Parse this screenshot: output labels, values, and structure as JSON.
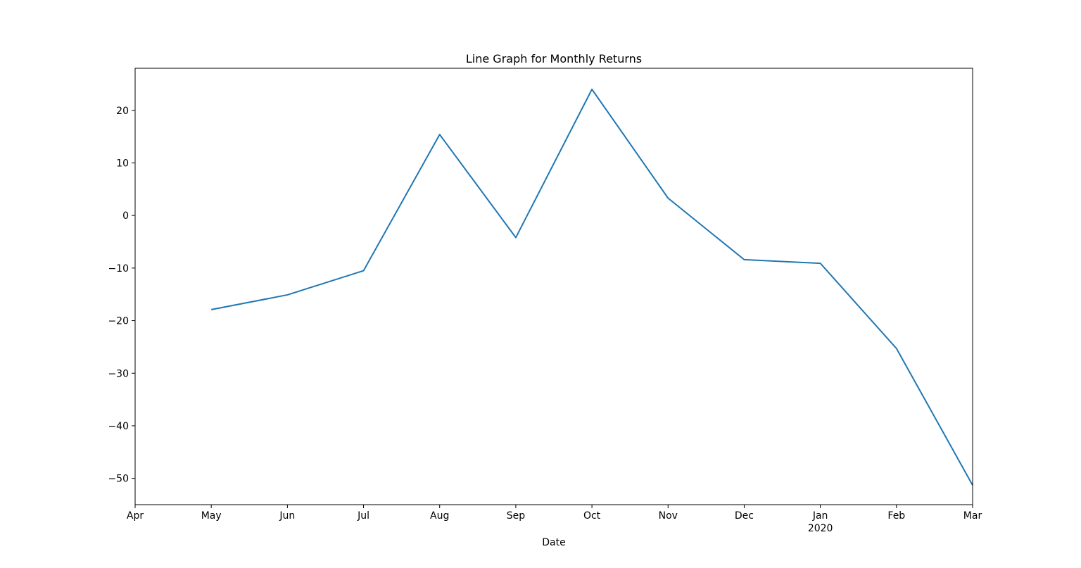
{
  "chart_data": {
    "type": "line",
    "title": "Line Graph for Monthly Returns",
    "xlabel": "Date",
    "ylabel": "",
    "x": [
      "2019-05",
      "2019-06",
      "2019-07",
      "2019-08",
      "2019-09",
      "2019-10",
      "2019-11",
      "2019-12",
      "2020-01",
      "2020-02",
      "2020-03"
    ],
    "series": [
      {
        "name": "",
        "color": "#1f77b4",
        "values": [
          -17.9,
          -15.1,
          -10.5,
          15.4,
          -4.2,
          24.0,
          3.3,
          -8.4,
          -9.1,
          -25.3,
          -51.3
        ]
      }
    ],
    "x_tick_labels": [
      "Apr",
      "May",
      "Jun",
      "Jul",
      "Aug",
      "Sep",
      "Oct",
      "Nov",
      "Dec",
      "Jan",
      "Feb",
      "Mar"
    ],
    "x_tick_sublabels": [
      {
        "tick": "Jan",
        "label": "2020"
      }
    ],
    "y_tick_labels": [
      "20",
      "10",
      "0",
      "−10",
      "−20",
      "−30",
      "−40",
      "−50"
    ],
    "y_ticks": [
      20,
      10,
      0,
      -10,
      -20,
      -30,
      -40,
      -50
    ],
    "xlim": [
      "2019-04",
      "2020-03"
    ],
    "ylim": [
      -55,
      28
    ],
    "grid": false,
    "legend": "none"
  }
}
